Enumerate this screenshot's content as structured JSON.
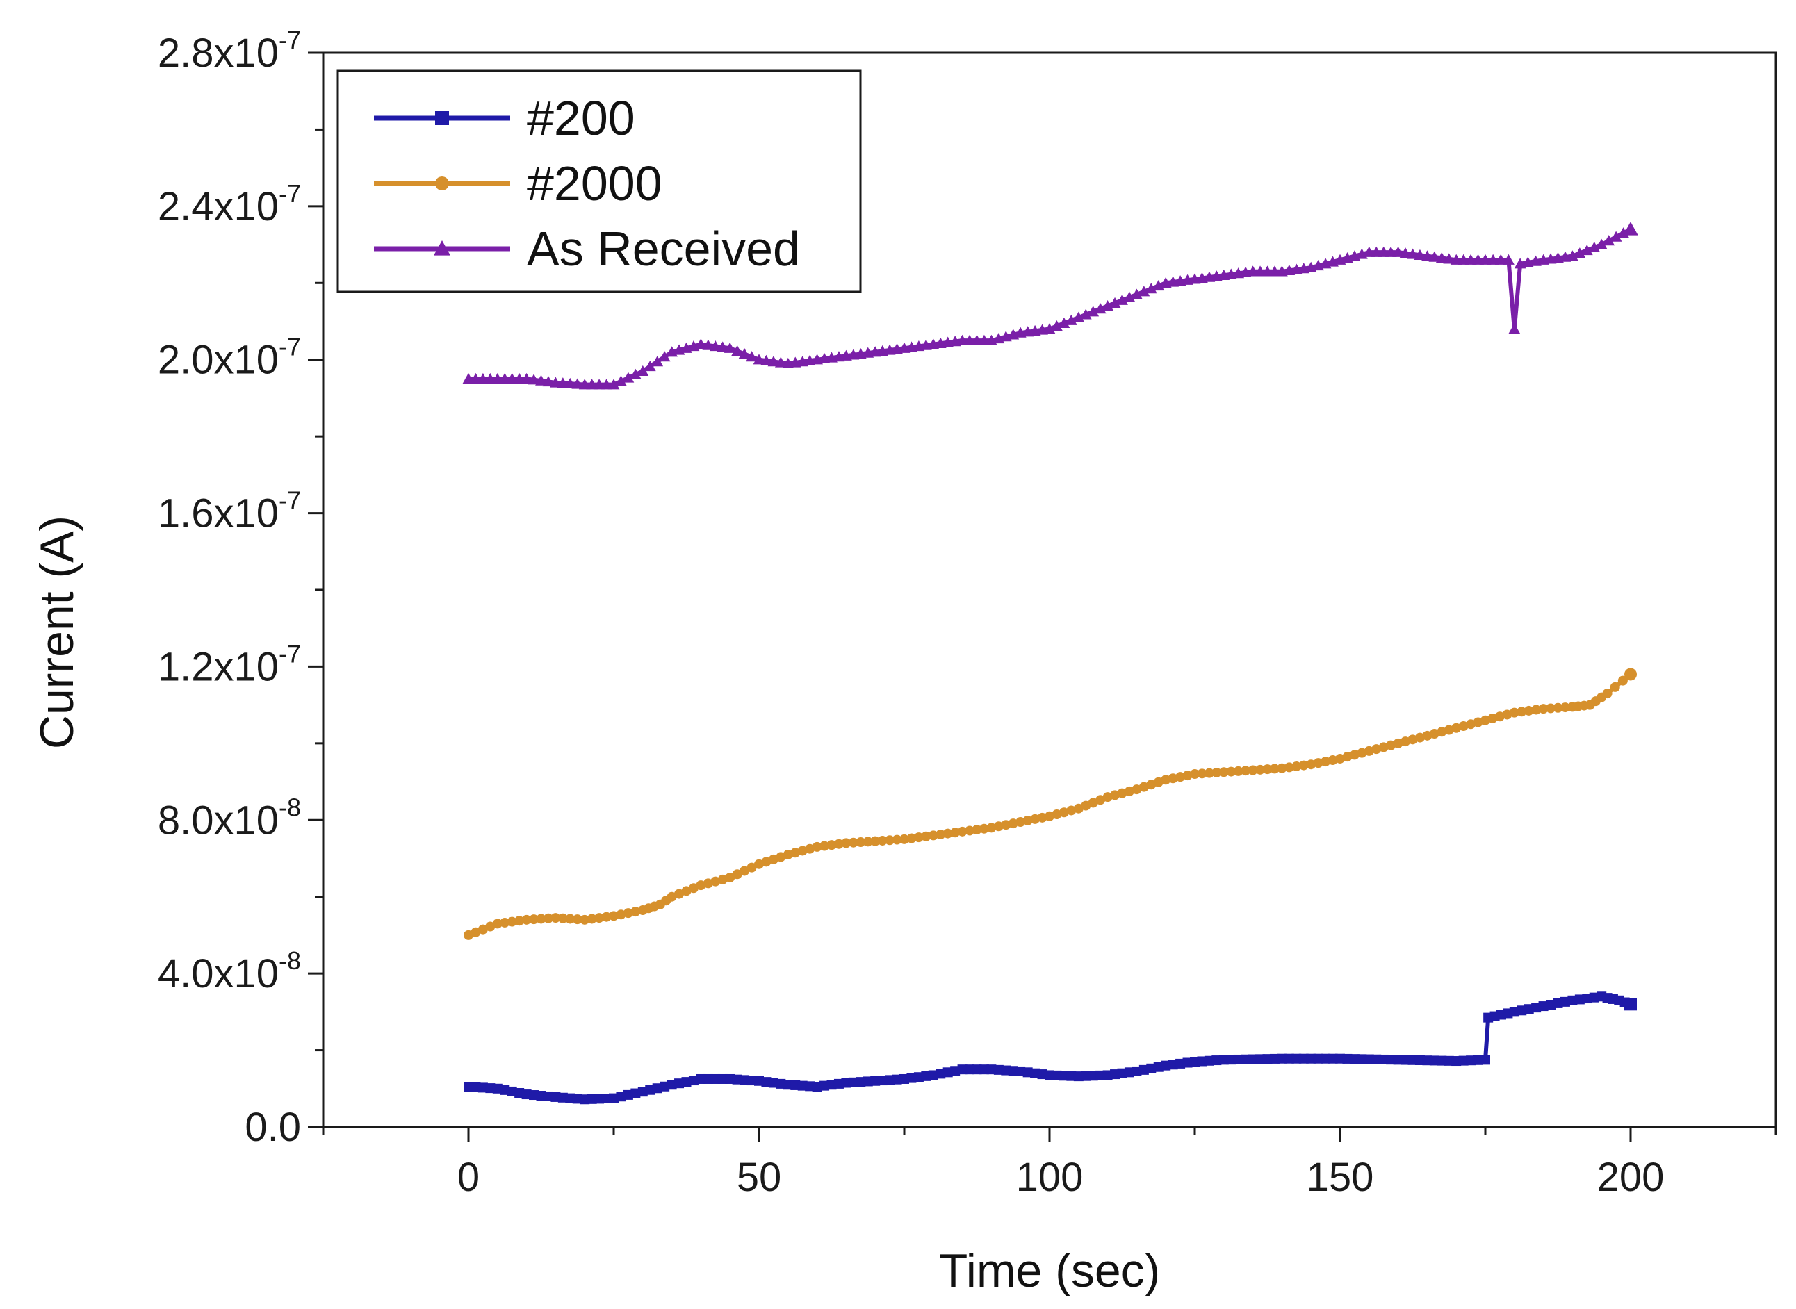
{
  "chart_data": {
    "type": "line",
    "title": "",
    "xlabel": "Time (sec)",
    "ylabel": "Current (A)",
    "xlim": [
      -25,
      225
    ],
    "ylim": [
      0,
      2.8e-07
    ],
    "grid": false,
    "legend_position": "top-left",
    "x_ticks": [
      {
        "value": 0,
        "label": "0"
      },
      {
        "value": 50,
        "label": "50"
      },
      {
        "value": 100,
        "label": "100"
      },
      {
        "value": 150,
        "label": "150"
      },
      {
        "value": 200,
        "label": "200"
      }
    ],
    "y_ticks": [
      {
        "value": 0,
        "mantissa": "0.0",
        "exponent": ""
      },
      {
        "value": 4e-08,
        "mantissa": "4.0x10",
        "exponent": "-8"
      },
      {
        "value": 8e-08,
        "mantissa": "8.0x10",
        "exponent": "-8"
      },
      {
        "value": 1.2e-07,
        "mantissa": "1.2x10",
        "exponent": "-7"
      },
      {
        "value": 1.6e-07,
        "mantissa": "1.6x10",
        "exponent": "-7"
      },
      {
        "value": 2e-07,
        "mantissa": "2.0x10",
        "exponent": "-7"
      },
      {
        "value": 2.4e-07,
        "mantissa": "2.4x10",
        "exponent": "-7"
      },
      {
        "value": 2.8e-07,
        "mantissa": "2.8x10",
        "exponent": "-7"
      }
    ],
    "series": [
      {
        "name": "#200",
        "color": "#1f1aa8",
        "marker": "square",
        "points": [
          [
            0,
            1.05e-08
          ],
          [
            5,
            1e-08
          ],
          [
            10,
            8.5e-09
          ],
          [
            15,
            7.8e-09
          ],
          [
            20,
            7.2e-09
          ],
          [
            25,
            7.5e-09
          ],
          [
            30,
            9.2e-09
          ],
          [
            35,
            1.1e-08
          ],
          [
            40,
            1.25e-08
          ],
          [
            45,
            1.25e-08
          ],
          [
            50,
            1.2e-08
          ],
          [
            55,
            1.1e-08
          ],
          [
            60,
            1.05e-08
          ],
          [
            65,
            1.15e-08
          ],
          [
            70,
            1.2e-08
          ],
          [
            75,
            1.25e-08
          ],
          [
            80,
            1.35e-08
          ],
          [
            85,
            1.5e-08
          ],
          [
            90,
            1.5e-08
          ],
          [
            95,
            1.45e-08
          ],
          [
            100,
            1.35e-08
          ],
          [
            105,
            1.32e-08
          ],
          [
            110,
            1.35e-08
          ],
          [
            115,
            1.45e-08
          ],
          [
            120,
            1.6e-08
          ],
          [
            125,
            1.7e-08
          ],
          [
            130,
            1.75e-08
          ],
          [
            140,
            1.78e-08
          ],
          [
            150,
            1.78e-08
          ],
          [
            160,
            1.75e-08
          ],
          [
            170,
            1.72e-08
          ],
          [
            175,
            1.75e-08
          ],
          [
            175.5,
            2.85e-08
          ],
          [
            180,
            3e-08
          ],
          [
            185,
            3.15e-08
          ],
          [
            190,
            3.3e-08
          ],
          [
            195,
            3.4e-08
          ],
          [
            198,
            3.3e-08
          ],
          [
            200,
            3.2e-08
          ]
        ]
      },
      {
        "name": "#2000",
        "color": "#d6902c",
        "marker": "circle",
        "points": [
          [
            0,
            5e-08
          ],
          [
            5,
            5.3e-08
          ],
          [
            10,
            5.4e-08
          ],
          [
            15,
            5.45e-08
          ],
          [
            20,
            5.4e-08
          ],
          [
            25,
            5.5e-08
          ],
          [
            30,
            5.65e-08
          ],
          [
            33,
            5.8e-08
          ],
          [
            35,
            6e-08
          ],
          [
            40,
            6.3e-08
          ],
          [
            45,
            6.5e-08
          ],
          [
            50,
            6.85e-08
          ],
          [
            55,
            7.1e-08
          ],
          [
            60,
            7.3e-08
          ],
          [
            65,
            7.4e-08
          ],
          [
            70,
            7.45e-08
          ],
          [
            75,
            7.5e-08
          ],
          [
            80,
            7.6e-08
          ],
          [
            85,
            7.7e-08
          ],
          [
            90,
            7.8e-08
          ],
          [
            95,
            7.95e-08
          ],
          [
            100,
            8.1e-08
          ],
          [
            105,
            8.3e-08
          ],
          [
            110,
            8.6e-08
          ],
          [
            115,
            8.8e-08
          ],
          [
            120,
            9.05e-08
          ],
          [
            125,
            9.2e-08
          ],
          [
            130,
            9.25e-08
          ],
          [
            135,
            9.3e-08
          ],
          [
            140,
            9.35e-08
          ],
          [
            145,
            9.45e-08
          ],
          [
            150,
            9.6e-08
          ],
          [
            155,
            9.8e-08
          ],
          [
            160,
            1e-07
          ],
          [
            165,
            1.02e-07
          ],
          [
            170,
            1.04e-07
          ],
          [
            175,
            1.06e-07
          ],
          [
            180,
            1.08e-07
          ],
          [
            185,
            1.09e-07
          ],
          [
            190,
            1.095e-07
          ],
          [
            193,
            1.1e-07
          ],
          [
            196,
            1.13e-07
          ],
          [
            200,
            1.18e-07
          ]
        ]
      },
      {
        "name": "As Received",
        "color": "#7a1fa8",
        "marker": "triangle",
        "points": [
          [
            0,
            1.95e-07
          ],
          [
            5,
            1.95e-07
          ],
          [
            10,
            1.95e-07
          ],
          [
            15,
            1.94e-07
          ],
          [
            20,
            1.935e-07
          ],
          [
            25,
            1.935e-07
          ],
          [
            30,
            1.97e-07
          ],
          [
            35,
            2.02e-07
          ],
          [
            40,
            2.04e-07
          ],
          [
            45,
            2.03e-07
          ],
          [
            50,
            2e-07
          ],
          [
            55,
            1.99e-07
          ],
          [
            60,
            2e-07
          ],
          [
            65,
            2.01e-07
          ],
          [
            70,
            2.02e-07
          ],
          [
            75,
            2.03e-07
          ],
          [
            80,
            2.04e-07
          ],
          [
            85,
            2.05e-07
          ],
          [
            90,
            2.05e-07
          ],
          [
            95,
            2.07e-07
          ],
          [
            100,
            2.08e-07
          ],
          [
            105,
            2.11e-07
          ],
          [
            110,
            2.14e-07
          ],
          [
            115,
            2.17e-07
          ],
          [
            120,
            2.2e-07
          ],
          [
            125,
            2.21e-07
          ],
          [
            130,
            2.22e-07
          ],
          [
            135,
            2.23e-07
          ],
          [
            140,
            2.23e-07
          ],
          [
            145,
            2.24e-07
          ],
          [
            150,
            2.26e-07
          ],
          [
            155,
            2.28e-07
          ],
          [
            160,
            2.28e-07
          ],
          [
            165,
            2.27e-07
          ],
          [
            170,
            2.26e-07
          ],
          [
            175,
            2.26e-07
          ],
          [
            179,
            2.26e-07
          ],
          [
            180,
            2.08e-07
          ],
          [
            181,
            2.25e-07
          ],
          [
            185,
            2.26e-07
          ],
          [
            190,
            2.27e-07
          ],
          [
            195,
            2.3e-07
          ],
          [
            200,
            2.34e-07
          ]
        ]
      }
    ]
  }
}
